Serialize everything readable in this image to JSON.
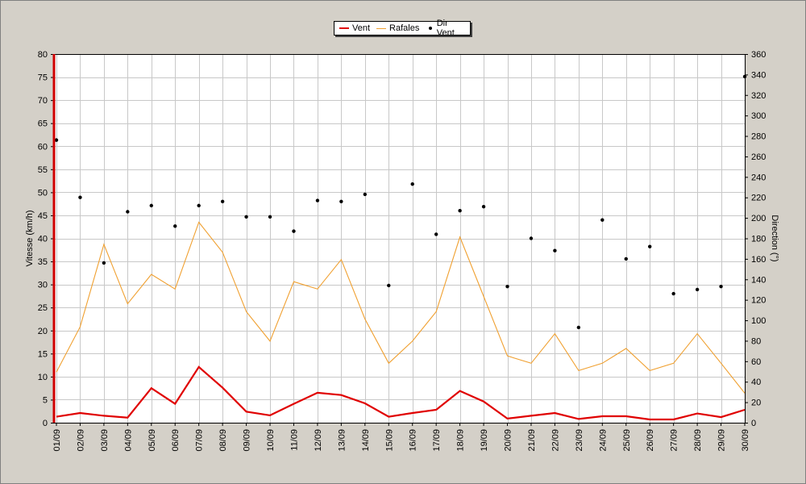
{
  "chart_data": {
    "type": "line",
    "x": [
      "01/09",
      "02/09",
      "03/09",
      "04/09",
      "05/09",
      "06/09",
      "07/09",
      "08/09",
      "09/09",
      "10/09",
      "11/09",
      "12/09",
      "13/09",
      "14/09",
      "15/09",
      "16/09",
      "17/09",
      "18/09",
      "19/09",
      "20/09",
      "21/09",
      "22/09",
      "23/09",
      "24/09",
      "25/09",
      "26/09",
      "27/09",
      "28/09",
      "29/09",
      "30/09"
    ],
    "ylabel": "Vitesse (km/h)",
    "y2label": "Direction (°)",
    "ylim": [
      0,
      80
    ],
    "y2lim": [
      0,
      360
    ],
    "yticks": [
      0,
      5,
      10,
      15,
      20,
      25,
      30,
      35,
      40,
      45,
      50,
      55,
      60,
      65,
      70,
      75,
      80
    ],
    "y2ticks": [
      0,
      20,
      40,
      60,
      80,
      100,
      120,
      140,
      160,
      180,
      200,
      220,
      240,
      260,
      280,
      300,
      320,
      340,
      360
    ],
    "grid": true,
    "legend_position": "top-center",
    "series": [
      {
        "name": "Vent",
        "color": "#e00000",
        "axis": "left",
        "style": "line-thick",
        "values": [
          1.3,
          2.1,
          1.5,
          1.1,
          7.5,
          4.1,
          12.1,
          7.6,
          2.4,
          1.6,
          4.1,
          6.5,
          6.0,
          4.2,
          1.3,
          2.1,
          2.8,
          6.9,
          4.6,
          0.9,
          1.5,
          2.1,
          0.8,
          1.4,
          1.4,
          0.7,
          0.7,
          2.0,
          1.2,
          2.8
        ]
      },
      {
        "name": "Rafales",
        "color": "#f0a030",
        "axis": "left",
        "style": "line",
        "values": [
          11.0,
          20.8,
          38.7,
          25.8,
          32.2,
          29.0,
          43.5,
          37.0,
          24.1,
          17.7,
          30.6,
          29.0,
          35.4,
          22.5,
          12.9,
          17.7,
          24.1,
          40.3,
          27.4,
          14.5,
          12.9,
          19.3,
          11.3,
          12.9,
          16.1,
          11.3,
          12.9,
          19.3,
          12.9,
          6.4
        ]
      },
      {
        "name": "Dir Vent",
        "color": "#000000",
        "axis": "right",
        "style": "points",
        "values": [
          276,
          220,
          156,
          206,
          212,
          192,
          212,
          216,
          201,
          201,
          187,
          217,
          216,
          223,
          134,
          233,
          184,
          207,
          211,
          133,
          180,
          168,
          93,
          198,
          160,
          172,
          126,
          130,
          133,
          338
        ]
      }
    ]
  }
}
